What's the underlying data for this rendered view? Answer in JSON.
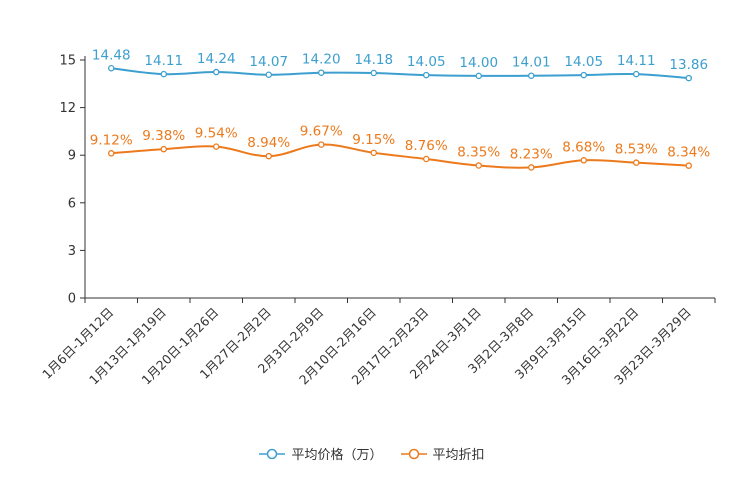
{
  "chart_data": {
    "type": "line",
    "categories": [
      "1月6日-1月12日",
      "1月13日-1月19日",
      "1月20日-1月26日",
      "1月27日-2月2日",
      "2月3日-2月9日",
      "2月10日-2月16日",
      "2月17日-2月23日",
      "2月24日-3月1日",
      "3月2日-3月8日",
      "3月9日-3月15日",
      "3月16日-3月22日",
      "3月23日-3月29日"
    ],
    "ylim": [
      0,
      15
    ],
    "yticks": [
      "0",
      "3",
      "6",
      "9",
      "12",
      "15"
    ],
    "series": [
      {
        "name": "平均价格（万）",
        "color": "#3c9fcf",
        "values": [
          14.48,
          14.11,
          14.24,
          14.07,
          14.2,
          14.18,
          14.05,
          14.0,
          14.01,
          14.05,
          14.11,
          13.86
        ],
        "labels": [
          "14.48",
          "14.11",
          "14.24",
          "14.07",
          "14.20",
          "14.18",
          "14.05",
          "14.00",
          "14.01",
          "14.05",
          "14.11",
          "13.86"
        ]
      },
      {
        "name": "平均折扣",
        "color": "#ec7a1c",
        "values": [
          9.12,
          9.38,
          9.54,
          8.94,
          9.67,
          9.15,
          8.76,
          8.35,
          8.23,
          8.68,
          8.53,
          8.34
        ],
        "labels": [
          "9.12%",
          "9.38%",
          "9.54%",
          "8.94%",
          "9.67%",
          "9.15%",
          "8.76%",
          "8.35%",
          "8.23%",
          "8.68%",
          "8.53%",
          "8.34%"
        ]
      }
    ]
  }
}
